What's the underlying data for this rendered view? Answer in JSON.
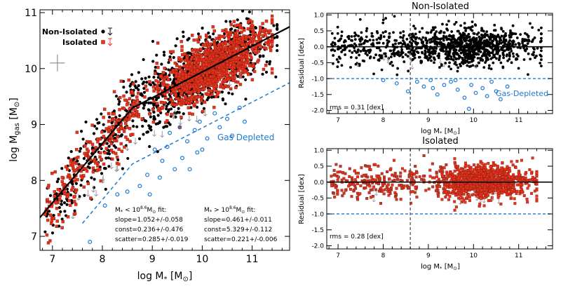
{
  "colors": {
    "non_isolated": "#000000",
    "isolated": "#e8321c",
    "isolated_edge": "#8a1f12",
    "gas_depleted": "#1f78d1",
    "fit_line": "#000000"
  },
  "chart_data": [
    {
      "id": "main",
      "type": "scatter",
      "xlabel": "log M* [M⊙]",
      "ylabel": "log Mgas [M⊙]",
      "xlim": [
        6.75,
        11.75
      ],
      "ylim": [
        6.75,
        11.05
      ],
      "xticks": [
        7,
        8,
        9,
        10,
        11
      ],
      "yticks": [
        7,
        8,
        9,
        10,
        11
      ],
      "legend": {
        "placement": "top-left",
        "entries": [
          {
            "label": "Non-Isolated",
            "color": "#000000",
            "marker": "circle"
          },
          {
            "label": "Isolated",
            "color": "#e8321c",
            "marker": "square"
          }
        ]
      },
      "annotation_gas_depleted": "Gas Depleted",
      "fit_low": {
        "title": "M* < 10^8.6 M⊙ fit:",
        "lines": [
          "slope=1.052+/-0.058",
          "const=0.236+/-0.476",
          "scatter=0.285+/-0.019"
        ],
        "slope": 1.052,
        "const": 0.236
      },
      "fit_high": {
        "title": "M* > 10^8.6 M⊙ fit:",
        "lines": [
          "slope=0.461+/-0.011",
          "const=5.329+/-0.112",
          "scatter=0.221+/-0.006"
        ],
        "slope": 0.461,
        "const": 5.329
      },
      "break_point": 8.6,
      "gas_depleted_line": {
        "slope": 0.461,
        "const": 4.329
      },
      "gas_depleted_points": [
        [
          9.2,
          8.35
        ],
        [
          9.3,
          8.6
        ],
        [
          9.45,
          8.2
        ],
        [
          9.55,
          8.95
        ],
        [
          9.7,
          8.7
        ],
        [
          9.85,
          8.9
        ],
        [
          9.95,
          9.05
        ],
        [
          10.1,
          8.75
        ],
        [
          10.25,
          9.2
        ],
        [
          10.35,
          8.95
        ],
        [
          10.5,
          9.1
        ],
        [
          10.6,
          8.8
        ],
        [
          10.75,
          9.3
        ],
        [
          10.85,
          9.05
        ],
        [
          9.05,
          8.55
        ],
        [
          8.9,
          8.1
        ],
        [
          8.75,
          7.9
        ],
        [
          8.5,
          7.8
        ],
        [
          8.3,
          7.75
        ],
        [
          8.05,
          7.55
        ],
        [
          7.75,
          6.9
        ],
        [
          9.6,
          8.4
        ],
        [
          9.9,
          8.5
        ],
        [
          9.35,
          8.85
        ],
        [
          10.0,
          8.55
        ],
        [
          9.15,
          8.05
        ],
        [
          8.95,
          7.75
        ],
        [
          9.75,
          8.2
        ]
      ],
      "error_bar": {
        "x": 7.1,
        "y": 10.1,
        "dx": 0.15,
        "dy": 0.15
      }
    },
    {
      "id": "non_isolated_residual",
      "type": "scatter",
      "title": "Non-Isolated",
      "xlabel": "log M* [M⊙]",
      "ylabel": "Residual [dex]",
      "xlim": [
        6.75,
        11.75
      ],
      "ylim": [
        -2.1,
        1.05
      ],
      "xticks": [
        7,
        8,
        9,
        10,
        11
      ],
      "yticks": [
        1.0,
        0.5,
        0.0,
        -0.5,
        -1.0,
        -1.5,
        -2.0
      ],
      "yticklabels": [
        "1.0",
        "0.5",
        "0.0",
        "-0.5",
        "-1.0",
        "-1.5",
        "-2.0"
      ],
      "rms_label": "rms = 0.31 [dex]",
      "annotation_gas_depleted": "Gas-Depleted",
      "depleted_threshold": -1.0,
      "break_point": 8.6,
      "gas_depleted_points": [
        [
          8.3,
          -1.15
        ],
        [
          8.55,
          -1.4
        ],
        [
          8.75,
          -1.1
        ],
        [
          8.9,
          -1.25
        ],
        [
          9.05,
          -1.05
        ],
        [
          9.2,
          -1.5
        ],
        [
          9.35,
          -1.2
        ],
        [
          9.5,
          -1.1
        ],
        [
          9.65,
          -1.35
        ],
        [
          9.8,
          -1.6
        ],
        [
          9.95,
          -1.2
        ],
        [
          10.05,
          -1.45
        ],
        [
          10.2,
          -1.3
        ],
        [
          10.4,
          -1.1
        ],
        [
          10.6,
          -1.65
        ],
        [
          10.75,
          -1.25
        ],
        [
          9.9,
          -1.95
        ],
        [
          10.3,
          -1.55
        ],
        [
          9.1,
          -1.3
        ],
        [
          8.0,
          -1.05
        ],
        [
          9.6,
          -1.05
        ],
        [
          10.5,
          -1.4
        ]
      ]
    },
    {
      "id": "isolated_residual",
      "type": "scatter",
      "title": "Isolated",
      "xlabel": "log M* [M⊙]",
      "ylabel": "Residual [dex]",
      "xlim": [
        6.75,
        11.75
      ],
      "ylim": [
        -2.1,
        1.05
      ],
      "xticks": [
        7,
        8,
        9,
        10,
        11
      ],
      "yticks": [
        1.0,
        0.5,
        0.0,
        -0.5,
        -1.0,
        -1.5,
        -2.0
      ],
      "yticklabels": [
        "1.0",
        "0.5",
        "0.0",
        "-0.5",
        "-1.0",
        "-1.5",
        "-2.0"
      ],
      "rms_label": "rms = 0.28 [dex]",
      "depleted_threshold": -1.0,
      "break_point": 8.6
    }
  ]
}
